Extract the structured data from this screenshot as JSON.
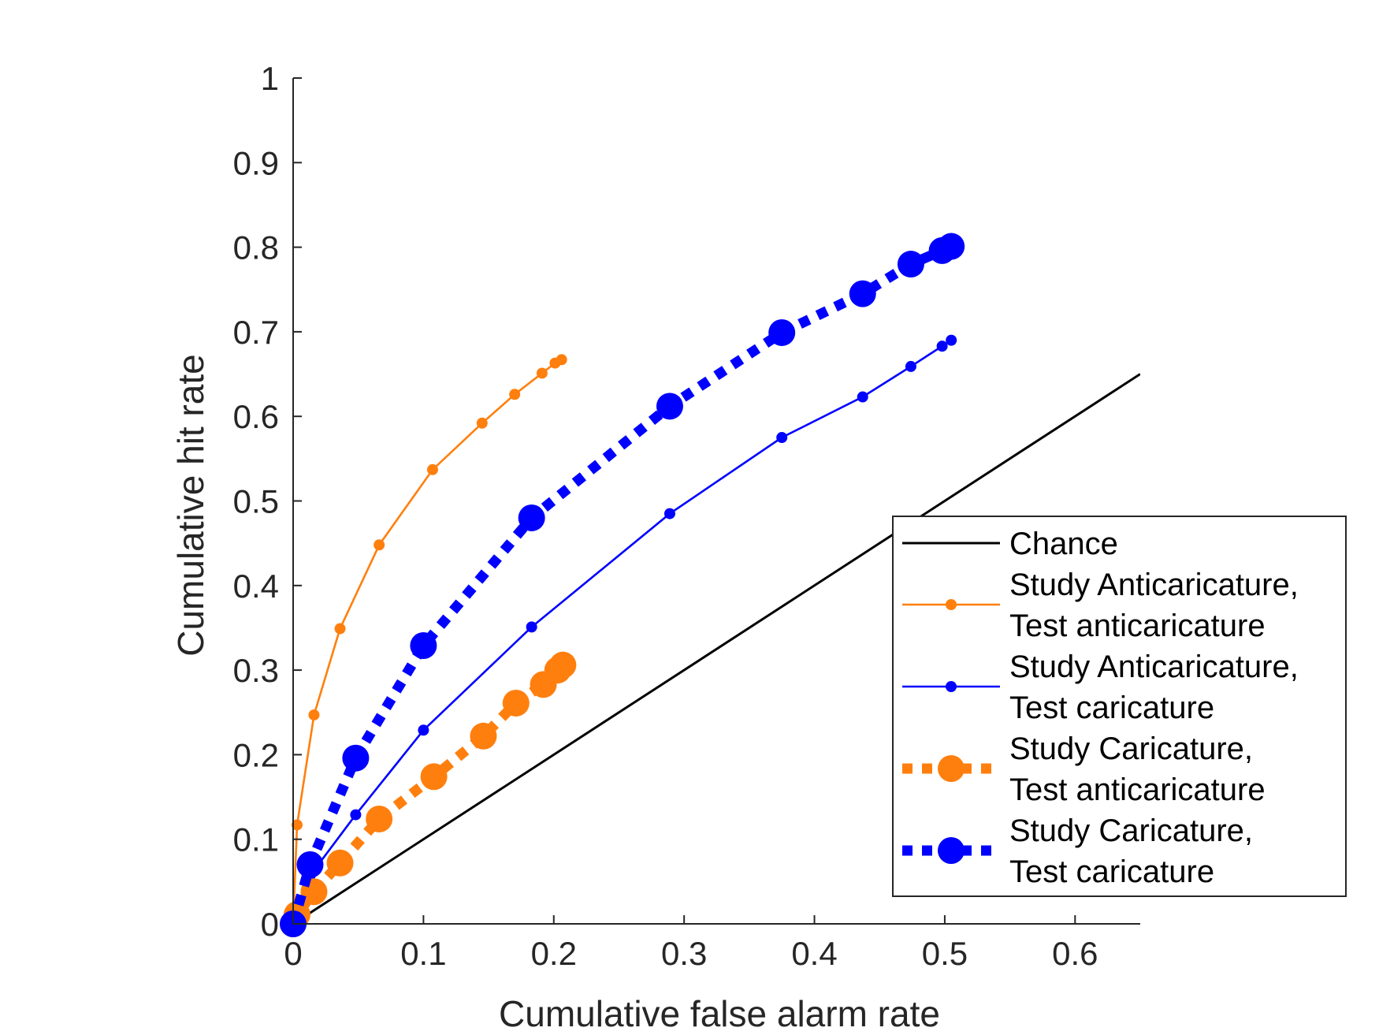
{
  "chart_data": {
    "type": "line",
    "title": "",
    "xlabel": "Cumulative false alarm rate",
    "ylabel": "Cumulative hit rate",
    "xlim": [
      0,
      0.65
    ],
    "ylim": [
      0,
      1
    ],
    "xticks": [
      "0",
      "0.1",
      "0.2",
      "0.3",
      "0.4",
      "0.5",
      "0.6"
    ],
    "yticks": [
      "0",
      "0.1",
      "0.2",
      "0.3",
      "0.4",
      "0.5",
      "0.6",
      "0.7",
      "0.8",
      "0.9",
      "1"
    ],
    "grid": false,
    "legend_position": "bottom-right",
    "series": [
      {
        "name": "Chance",
        "legend_lines": [
          "Chance"
        ],
        "color": "#000000",
        "style": "solid",
        "marker": "none",
        "x": [
          0,
          0.65
        ],
        "y": [
          0,
          0.65
        ]
      },
      {
        "name": "Study Anticaricature, Test anticaricature",
        "legend_lines": [
          "Study Anticaricature,",
          "Test anticaricature"
        ],
        "color": "#FF7F0E",
        "style": "solid",
        "marker": "small-dot",
        "x": [
          0,
          0.003,
          0.016,
          0.036,
          0.066,
          0.107,
          0.145,
          0.17,
          0.191,
          0.201,
          0.206
        ],
        "y": [
          0,
          0.117,
          0.247,
          0.349,
          0.448,
          0.537,
          0.592,
          0.626,
          0.651,
          0.663,
          0.667
        ]
      },
      {
        "name": "Study Anticaricature, Test caricature",
        "legend_lines": [
          "Study Anticaricature,",
          "Test caricature"
        ],
        "color": "#0000FF",
        "style": "solid",
        "marker": "small-dot",
        "x": [
          0,
          0.013,
          0.048,
          0.1,
          0.183,
          0.289,
          0.375,
          0.437,
          0.474,
          0.498,
          0.505
        ],
        "y": [
          0,
          0.057,
          0.129,
          0.229,
          0.351,
          0.485,
          0.575,
          0.623,
          0.659,
          0.683,
          0.69
        ]
      },
      {
        "name": "Study Caricature, Test anticaricature",
        "legend_lines": [
          "Study Caricature,",
          "Test anticaricature"
        ],
        "color": "#FF7F0E",
        "style": "dotted",
        "marker": "large-dot",
        "x": [
          0,
          0.003,
          0.016,
          0.036,
          0.066,
          0.108,
          0.146,
          0.171,
          0.192,
          0.203,
          0.207
        ],
        "y": [
          0,
          0.011,
          0.038,
          0.072,
          0.124,
          0.174,
          0.222,
          0.261,
          0.283,
          0.3,
          0.306
        ]
      },
      {
        "name": "Study Caricature, Test caricature",
        "legend_lines": [
          "Study Caricature,",
          "Test caricature"
        ],
        "color": "#0000FF",
        "style": "dotted",
        "marker": "large-dot",
        "x": [
          0,
          0.013,
          0.048,
          0.1,
          0.183,
          0.289,
          0.375,
          0.437,
          0.474,
          0.498,
          0.505
        ],
        "y": [
          0,
          0.07,
          0.196,
          0.329,
          0.48,
          0.612,
          0.699,
          0.745,
          0.78,
          0.796,
          0.801
        ]
      }
    ]
  }
}
